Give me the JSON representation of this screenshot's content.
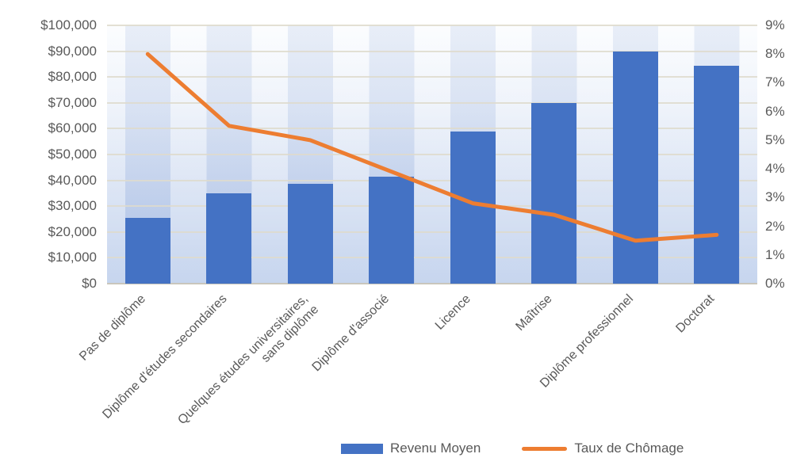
{
  "chart_data": {
    "type": "bar",
    "subtype": "combo-bar-line",
    "title": "",
    "categories": [
      "Pas de diplôme",
      "Diplôme d'études secondaires",
      "Quelques études universitaires,\nsans diplôme",
      "Diplôme d'associé",
      "Licence",
      "Maîtrise",
      "Diplôme professionnel",
      "Doctorat"
    ],
    "series": [
      {
        "name": "Revenu Moyen",
        "type": "bar",
        "axis": "left",
        "color": "#4472C4",
        "values": [
          25500,
          35000,
          38500,
          41500,
          59000,
          70000,
          90000,
          84500
        ]
      },
      {
        "name": "Taux de Chômage",
        "type": "line",
        "axis": "right",
        "color": "#ED7D31",
        "values": [
          8.0,
          5.5,
          5.0,
          3.9,
          2.8,
          2.4,
          1.5,
          1.7
        ]
      }
    ],
    "left_axis": {
      "min": 0,
      "max": 100000,
      "step": 10000,
      "tick_labels": [
        "$0",
        "$10,000",
        "$20,000",
        "$30,000",
        "$40,000",
        "$50,000",
        "$60,000",
        "$70,000",
        "$80,000",
        "$90,000",
        "$100,000"
      ]
    },
    "right_axis": {
      "min": 0,
      "max": 9,
      "step": 1,
      "tick_labels": [
        "0%",
        "1%",
        "2%",
        "3%",
        "4%",
        "5%",
        "6%",
        "7%",
        "8%",
        "9%"
      ]
    },
    "grid": true,
    "legend_position": "bottom"
  },
  "colors": {
    "bar": "#4472C4",
    "line": "#ED7D31",
    "axis_text": "#595959",
    "gridline": "#DEDACC",
    "baseline": "#C9C6BC"
  }
}
